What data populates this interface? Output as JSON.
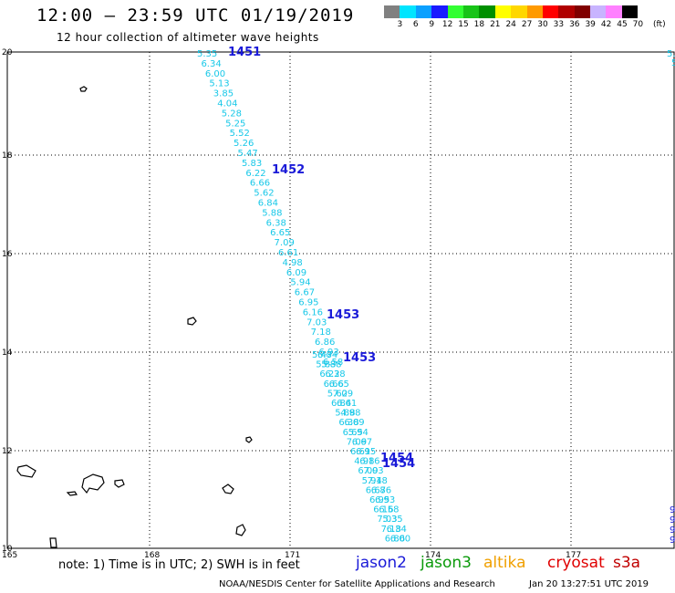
{
  "header": {
    "title": "12:00 – 23:59 UTC 01/19/2019",
    "subtitle": "12 hour collection of altimeter wave heights"
  },
  "legend": {
    "colors": [
      "#808080",
      "#00e5ff",
      "#0aa0ff",
      "#1a1aff",
      "#33ff33",
      "#18c418",
      "#009000",
      "#ffff00",
      "#ffd700",
      "#ff9a00",
      "#ff0000",
      "#b00000",
      "#800000",
      "#c8b4ff",
      "#ff80ff",
      "#000000"
    ],
    "labels": [
      "3",
      "6",
      "9",
      "12",
      "15",
      "18",
      "21",
      "24",
      "27",
      "30",
      "33",
      "36",
      "39",
      "42",
      "45",
      "70",
      "(ft)"
    ]
  },
  "map": {
    "lat_ticks": [
      "20",
      "18",
      "16",
      "14",
      "12",
      "10"
    ],
    "lon_ticks": [
      "165",
      "168",
      "171",
      "174",
      "177"
    ],
    "pass_labels": [
      {
        "text": "1451"
      },
      {
        "text": "1452"
      },
      {
        "text": "1453"
      },
      {
        "text": "1453"
      },
      {
        "text": "1454"
      },
      {
        "text": "1454"
      }
    ],
    "track_values": [
      "5.35",
      "6.34",
      "6.00",
      "5.13",
      "3.85",
      "4.04",
      "5.28",
      "5.25",
      "5.52",
      "5.26",
      "5.47",
      "5.83",
      "6.22",
      "6.66",
      "5.62",
      "6.84",
      "5.88",
      "6.38",
      "6.65",
      "7.09",
      "6.61",
      "4.98",
      "6.09",
      "5.94",
      "6.67",
      "6.95",
      "6.16",
      "7.03",
      "7.18",
      "6.86",
      "6.93",
      "6.58"
    ],
    "edge_value": "5.",
    "edge_values_bottom": [
      "9",
      "9",
      "9",
      "9"
    ]
  },
  "footer": {
    "note": "note: 1) Time is in UTC; 2) SWH is in feet",
    "satellites": [
      {
        "name": "jason2",
        "color": "#1a1ad8"
      },
      {
        "name": "jason3",
        "color": "#0a9a0a"
      },
      {
        "name": "altika",
        "color": "#f0a000"
      },
      {
        "name": "cryosat",
        "color": "#e00000"
      },
      {
        "name": "s3a",
        "color": "#c00000"
      }
    ],
    "credit": "NOAA/NESDIS Center for Satellite Applications and Research",
    "timestamp": "Jan 20 13:27:51 UTC 2019"
  }
}
